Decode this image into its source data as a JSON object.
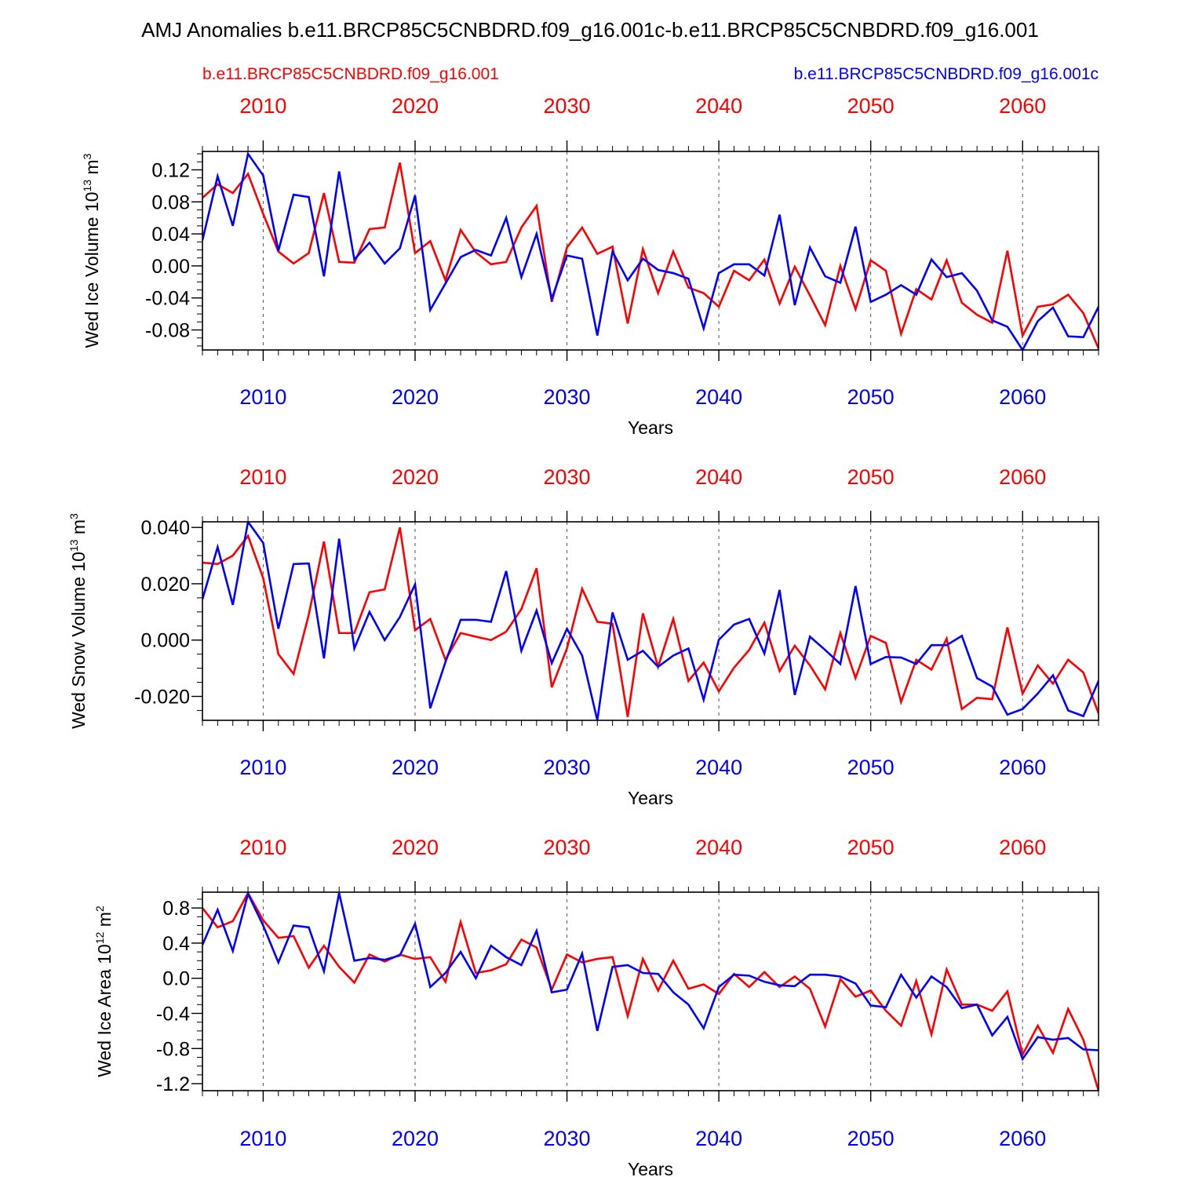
{
  "title": "AMJ Anomalies b.e11.BRCP85C5CNBDRD.f09_g16.001c-b.e11.BRCP85C5CNBDRD.f09_g16.001",
  "legend": {
    "red_label": "b.e11.BRCP85C5CNBDRD.f09_g16.001",
    "blue_label": "b.e11.BRCP85C5CNBDRD.f09_g16.001c"
  },
  "colors": {
    "red": "#ff0000",
    "blue": "#0000ff",
    "axis": "#000000",
    "grid": "#555555"
  },
  "chart_data": [
    {
      "type": "line",
      "title": "",
      "ylabel": "Wed Ice Volume",
      "ylabel_power": "13",
      "ylabel_unit": "m",
      "ylabel_unit_power": "3",
      "xlabel": "Years",
      "xlim": [
        2006,
        2065
      ],
      "ylim": [
        -0.105,
        0.143
      ],
      "yticks": [
        -0.08,
        -0.04,
        0.0,
        0.04,
        0.08,
        0.12
      ],
      "yticklabels": [
        "-0.08",
        "-0.04",
        "0.00",
        "0.04",
        "0.08",
        "0.12"
      ],
      "yminor": 0.01,
      "xticks": [
        2010,
        2020,
        2030,
        2040,
        2050,
        2060
      ],
      "xticklabels": [
        "2010",
        "2020",
        "2030",
        "2040",
        "2050",
        "2060"
      ],
      "gridlines_x": [
        2010,
        2020,
        2030,
        2040,
        2050,
        2060
      ],
      "x": [
        2006,
        2007,
        2008,
        2009,
        2010,
        2011,
        2012,
        2013,
        2014,
        2015,
        2016,
        2017,
        2018,
        2019,
        2020,
        2021,
        2022,
        2023,
        2024,
        2025,
        2026,
        2027,
        2028,
        2029,
        2030,
        2031,
        2032,
        2033,
        2034,
        2035,
        2036,
        2037,
        2038,
        2039,
        2040,
        2041,
        2042,
        2043,
        2044,
        2045,
        2046,
        2047,
        2048,
        2049,
        2050,
        2051,
        2052,
        2053,
        2054,
        2055,
        2056,
        2057,
        2058,
        2059,
        2060,
        2061,
        2062,
        2063,
        2064,
        2065
      ],
      "series": [
        {
          "name": "b.e11.BRCP85C5CNBDRD.f09_g16.001",
          "color": "#ff0000",
          "values": [
            0.085,
            0.102,
            0.091,
            0.115,
            0.065,
            0.018,
            0.003,
            0.016,
            0.091,
            0.005,
            0.004,
            0.046,
            0.048,
            0.129,
            0.016,
            0.031,
            -0.018,
            0.045,
            0.017,
            0.002,
            0.005,
            0.048,
            0.075,
            -0.045,
            0.023,
            0.048,
            0.015,
            0.024,
            -0.072,
            0.021,
            -0.034,
            0.018,
            -0.027,
            -0.034,
            -0.051,
            -0.006,
            -0.018,
            0.008,
            -0.047,
            -0.001,
            -0.037,
            -0.074,
            0.0,
            -0.054,
            0.007,
            -0.006,
            -0.085,
            -0.029,
            -0.042,
            0.007,
            -0.046,
            -0.061,
            -0.071,
            0.019,
            -0.087,
            -0.051,
            -0.048,
            -0.036,
            -0.059,
            -0.103
          ]
        },
        {
          "name": "b.e11.BRCP85C5CNBDRD.f09_g16.001c",
          "color": "#0000ff",
          "values": [
            0.032,
            0.112,
            0.05,
            0.14,
            0.113,
            0.019,
            0.089,
            0.086,
            -0.013,
            0.118,
            0.008,
            0.029,
            0.003,
            0.022,
            0.088,
            -0.055,
            -0.022,
            0.011,
            0.02,
            0.013,
            0.06,
            -0.014,
            0.04,
            -0.041,
            0.013,
            0.009,
            -0.087,
            0.018,
            -0.018,
            0.009,
            -0.005,
            -0.009,
            -0.016,
            -0.078,
            -0.009,
            0.002,
            0.002,
            -0.012,
            0.064,
            -0.049,
            0.023,
            -0.013,
            -0.021,
            0.049,
            -0.045,
            -0.036,
            -0.024,
            -0.036,
            0.008,
            -0.014,
            -0.009,
            -0.031,
            -0.068,
            -0.076,
            -0.105,
            -0.069,
            -0.052,
            -0.088,
            -0.089,
            -0.051
          ]
        }
      ]
    },
    {
      "type": "line",
      "title": "",
      "ylabel": "Wed Snow Volume",
      "ylabel_power": "13",
      "ylabel_unit": "m",
      "ylabel_unit_power": "3",
      "xlabel": "Years",
      "xlim": [
        2006,
        2065
      ],
      "ylim": [
        -0.0285,
        0.042
      ],
      "yticks": [
        -0.02,
        0.0,
        0.02,
        0.04
      ],
      "yticklabels": [
        "-0.020",
        "0.000",
        "0.020",
        "0.040"
      ],
      "yminor": 0.005,
      "xticks": [
        2010,
        2020,
        2030,
        2040,
        2050,
        2060
      ],
      "xticklabels": [
        "2010",
        "2020",
        "2030",
        "2040",
        "2050",
        "2060"
      ],
      "gridlines_x": [
        2010,
        2020,
        2030,
        2040,
        2050,
        2060
      ],
      "x": [
        2006,
        2007,
        2008,
        2009,
        2010,
        2011,
        2012,
        2013,
        2014,
        2015,
        2016,
        2017,
        2018,
        2019,
        2020,
        2021,
        2022,
        2023,
        2024,
        2025,
        2026,
        2027,
        2028,
        2029,
        2030,
        2031,
        2032,
        2033,
        2034,
        2035,
        2036,
        2037,
        2038,
        2039,
        2040,
        2041,
        2042,
        2043,
        2044,
        2045,
        2046,
        2047,
        2048,
        2049,
        2050,
        2051,
        2052,
        2053,
        2054,
        2055,
        2056,
        2057,
        2058,
        2059,
        2060,
        2061,
        2062,
        2063,
        2064,
        2065
      ],
      "series": [
        {
          "name": "b.e11.BRCP85C5CNBDRD.f09_g16.001",
          "color": "#ff0000",
          "values": [
            0.0275,
            0.027,
            0.03,
            0.037,
            0.022,
            -0.005,
            -0.012,
            0.009,
            0.035,
            0.0025,
            0.0025,
            0.017,
            0.018,
            0.04,
            0.0035,
            0.0075,
            -0.007,
            0.0025,
            0.0012,
            0.0,
            0.003,
            0.011,
            0.0255,
            -0.0168,
            -0.003,
            0.0182,
            0.0065,
            0.0058,
            -0.0273,
            0.0095,
            -0.0095,
            0.0075,
            -0.0145,
            -0.008,
            -0.0182,
            -0.0098,
            -0.0035,
            0.0062,
            -0.011,
            -0.002,
            -0.009,
            -0.0175,
            0.0025,
            -0.0135,
            0.0015,
            -0.001,
            -0.022,
            -0.007,
            -0.0105,
            0.0005,
            -0.0245,
            -0.0205,
            -0.021,
            0.0045,
            -0.019,
            -0.009,
            -0.0155,
            -0.007,
            -0.0115,
            -0.026
          ]
        },
        {
          "name": "b.e11.BRCP85C5CNBDRD.f09_g16.001c",
          "color": "#0000ff",
          "values": [
            0.0145,
            0.033,
            0.0125,
            0.042,
            0.0345,
            0.004,
            0.027,
            0.0272,
            -0.0065,
            0.036,
            -0.003,
            0.01,
            0.0,
            0.0082,
            0.0198,
            -0.0242,
            -0.0078,
            0.0072,
            0.0072,
            0.0065,
            0.0245,
            -0.0038,
            0.0105,
            -0.0082,
            0.004,
            -0.0055,
            -0.0285,
            0.0098,
            -0.007,
            -0.0038,
            -0.0095,
            -0.0055,
            -0.003,
            -0.0212,
            0.0001,
            0.0055,
            0.0075,
            -0.0048,
            0.0178,
            -0.0195,
            0.0012,
            -0.0035,
            -0.0085,
            0.0192,
            -0.0085,
            -0.006,
            -0.0062,
            -0.0085,
            -0.0018,
            -0.0018,
            0.0015,
            -0.0135,
            -0.0165,
            -0.0265,
            -0.0245,
            -0.019,
            -0.0125,
            -0.025,
            -0.027,
            -0.0145
          ]
        }
      ]
    },
    {
      "type": "line",
      "title": "",
      "ylabel": "Wed Ice Area",
      "ylabel_power": "12",
      "ylabel_unit": "m",
      "ylabel_unit_power": "2",
      "xlabel": "Years",
      "xlim": [
        2006,
        2065
      ],
      "ylim": [
        -1.28,
        0.98
      ],
      "yticks": [
        -1.2,
        -0.8,
        -0.4,
        0.0,
        0.4,
        0.8
      ],
      "yticklabels": [
        "-1.2",
        "-0.8",
        "-0.4",
        "0.0",
        "0.4",
        "0.8"
      ],
      "yminor": 0.1,
      "xticks": [
        2010,
        2020,
        2030,
        2040,
        2050,
        2060
      ],
      "xticklabels": [
        "2010",
        "2020",
        "2030",
        "2040",
        "2050",
        "2060"
      ],
      "gridlines_x": [
        2010,
        2020,
        2030,
        2040,
        2050,
        2060
      ],
      "x": [
        2006,
        2007,
        2008,
        2009,
        2010,
        2011,
        2012,
        2013,
        2014,
        2015,
        2016,
        2017,
        2018,
        2019,
        2020,
        2021,
        2022,
        2023,
        2024,
        2025,
        2026,
        2027,
        2028,
        2029,
        2030,
        2031,
        2032,
        2033,
        2034,
        2035,
        2036,
        2037,
        2038,
        2039,
        2040,
        2041,
        2042,
        2043,
        2044,
        2045,
        2046,
        2047,
        2048,
        2049,
        2050,
        2051,
        2052,
        2053,
        2054,
        2055,
        2056,
        2057,
        2058,
        2059,
        2060,
        2061,
        2062,
        2063,
        2064,
        2065
      ],
      "series": [
        {
          "name": "b.e11.BRCP85C5CNBDRD.f09_g16.001",
          "color": "#ff0000",
          "values": [
            0.8,
            0.58,
            0.65,
            0.97,
            0.66,
            0.46,
            0.48,
            0.12,
            0.37,
            0.13,
            -0.05,
            0.27,
            0.19,
            0.27,
            0.22,
            0.24,
            -0.04,
            0.64,
            0.06,
            0.09,
            0.16,
            0.44,
            0.35,
            -0.13,
            0.27,
            0.18,
            0.22,
            0.24,
            -0.43,
            0.22,
            -0.14,
            0.2,
            -0.12,
            -0.07,
            -0.18,
            0.05,
            -0.1,
            0.07,
            -0.1,
            0.02,
            -0.12,
            -0.55,
            -0.01,
            -0.21,
            -0.14,
            -0.37,
            -0.54,
            -0.03,
            -0.64,
            0.1,
            -0.3,
            -0.3,
            -0.37,
            -0.15,
            -0.87,
            -0.54,
            -0.85,
            -0.35,
            -0.7,
            -1.28
          ]
        },
        {
          "name": "b.e11.BRCP85C5CNBDRD.f09_g16.001c",
          "color": "#0000ff",
          "values": [
            0.38,
            0.78,
            0.31,
            0.96,
            0.6,
            0.18,
            0.6,
            0.58,
            0.08,
            0.97,
            0.2,
            0.23,
            0.21,
            0.26,
            0.62,
            -0.1,
            0.06,
            0.3,
            0.0,
            0.37,
            0.24,
            0.15,
            0.54,
            -0.16,
            -0.13,
            0.28,
            -0.6,
            0.13,
            0.15,
            0.06,
            0.05,
            -0.16,
            -0.3,
            -0.57,
            -0.1,
            0.04,
            0.03,
            -0.04,
            -0.08,
            -0.09,
            0.04,
            0.04,
            0.02,
            -0.06,
            -0.31,
            -0.33,
            0.04,
            -0.22,
            0.02,
            -0.1,
            -0.34,
            -0.3,
            -0.65,
            -0.44,
            -0.92,
            -0.67,
            -0.7,
            -0.68,
            -0.81,
            -0.82
          ]
        }
      ]
    }
  ]
}
